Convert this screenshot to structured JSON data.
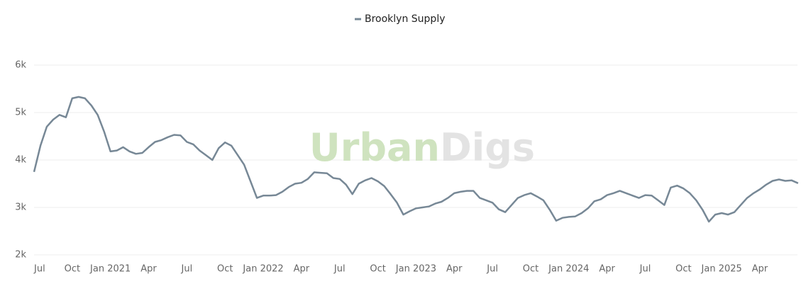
{
  "chart_data": {
    "type": "line",
    "watermark": [
      "Urban",
      "Digs"
    ],
    "categories": [
      "Jul",
      null,
      null,
      null,
      null,
      null,
      "Oct",
      null,
      null,
      null,
      null,
      null,
      "Jan 2021",
      null,
      null,
      null,
      null,
      null,
      "Apr",
      null,
      null,
      null,
      null,
      null,
      "Jul",
      null,
      null,
      null,
      null,
      null,
      "Oct",
      null,
      null,
      null,
      null,
      null,
      "Jan 2022",
      null,
      null,
      null,
      null,
      null,
      "Apr",
      null,
      null,
      null,
      null,
      null,
      "Jul",
      null,
      null,
      null,
      null,
      null,
      "Oct",
      null,
      null,
      null,
      null,
      null,
      "Jan 2023",
      null,
      null,
      null,
      null,
      null,
      "Apr",
      null,
      null,
      null,
      null,
      null,
      "Jul",
      null,
      null,
      null,
      null,
      null,
      "Oct",
      null,
      null,
      null,
      null,
      null,
      "Jan 2024",
      null,
      null,
      null,
      null,
      null,
      "Apr",
      null,
      null,
      null,
      null,
      null,
      "Jul",
      null,
      null,
      null,
      null,
      null,
      "Oct",
      null,
      null,
      null,
      null,
      null,
      "Jan 2025",
      null,
      null,
      null,
      null,
      null,
      "Apr",
      null,
      null,
      null,
      null,
      null,
      null
    ],
    "series": [
      {
        "name": "Brooklyn Supply",
        "color": "#778896",
        "values": [
          3750,
          4300,
          4700,
          4850,
          4950,
          4900,
          5300,
          5330,
          5300,
          5150,
          4950,
          4600,
          4180,
          4200,
          4270,
          4180,
          4130,
          4150,
          4270,
          4380,
          4420,
          4480,
          4530,
          4520,
          4380,
          4330,
          4200,
          4100,
          4000,
          4250,
          4370,
          4300,
          4100,
          3900,
          3550,
          3200,
          3250,
          3250,
          3260,
          3330,
          3430,
          3500,
          3520,
          3600,
          3740,
          3730,
          3720,
          3620,
          3600,
          3480,
          3280,
          3500,
          3570,
          3620,
          3550,
          3450,
          3280,
          3100,
          2850,
          2920,
          2980,
          3000,
          3020,
          3080,
          3120,
          3200,
          3300,
          3330,
          3350,
          3350,
          3200,
          3150,
          3100,
          2960,
          2900,
          3050,
          3200,
          3260,
          3300,
          3230,
          3150,
          2950,
          2720,
          2780,
          2800,
          2810,
          2880,
          2980,
          3130,
          3170,
          3260,
          3300,
          3350,
          3300,
          3250,
          3200,
          3260,
          3250,
          3150,
          3050,
          3420,
          3460,
          3400,
          3300,
          3150,
          2950,
          2700,
          2850,
          2880,
          2850,
          2900,
          3050,
          3200,
          3300,
          3380,
          3480,
          3560,
          3590,
          3560,
          3570,
          3510
        ]
      }
    ],
    "ylim": [
      2000,
      6000
    ],
    "yticks": [
      {
        "value": 2000,
        "label": "2k"
      },
      {
        "value": 3000,
        "label": "3k"
      },
      {
        "value": 4000,
        "label": "4k"
      },
      {
        "value": 5000,
        "label": "5k"
      },
      {
        "value": 6000,
        "label": "6k"
      }
    ],
    "grid": true
  }
}
